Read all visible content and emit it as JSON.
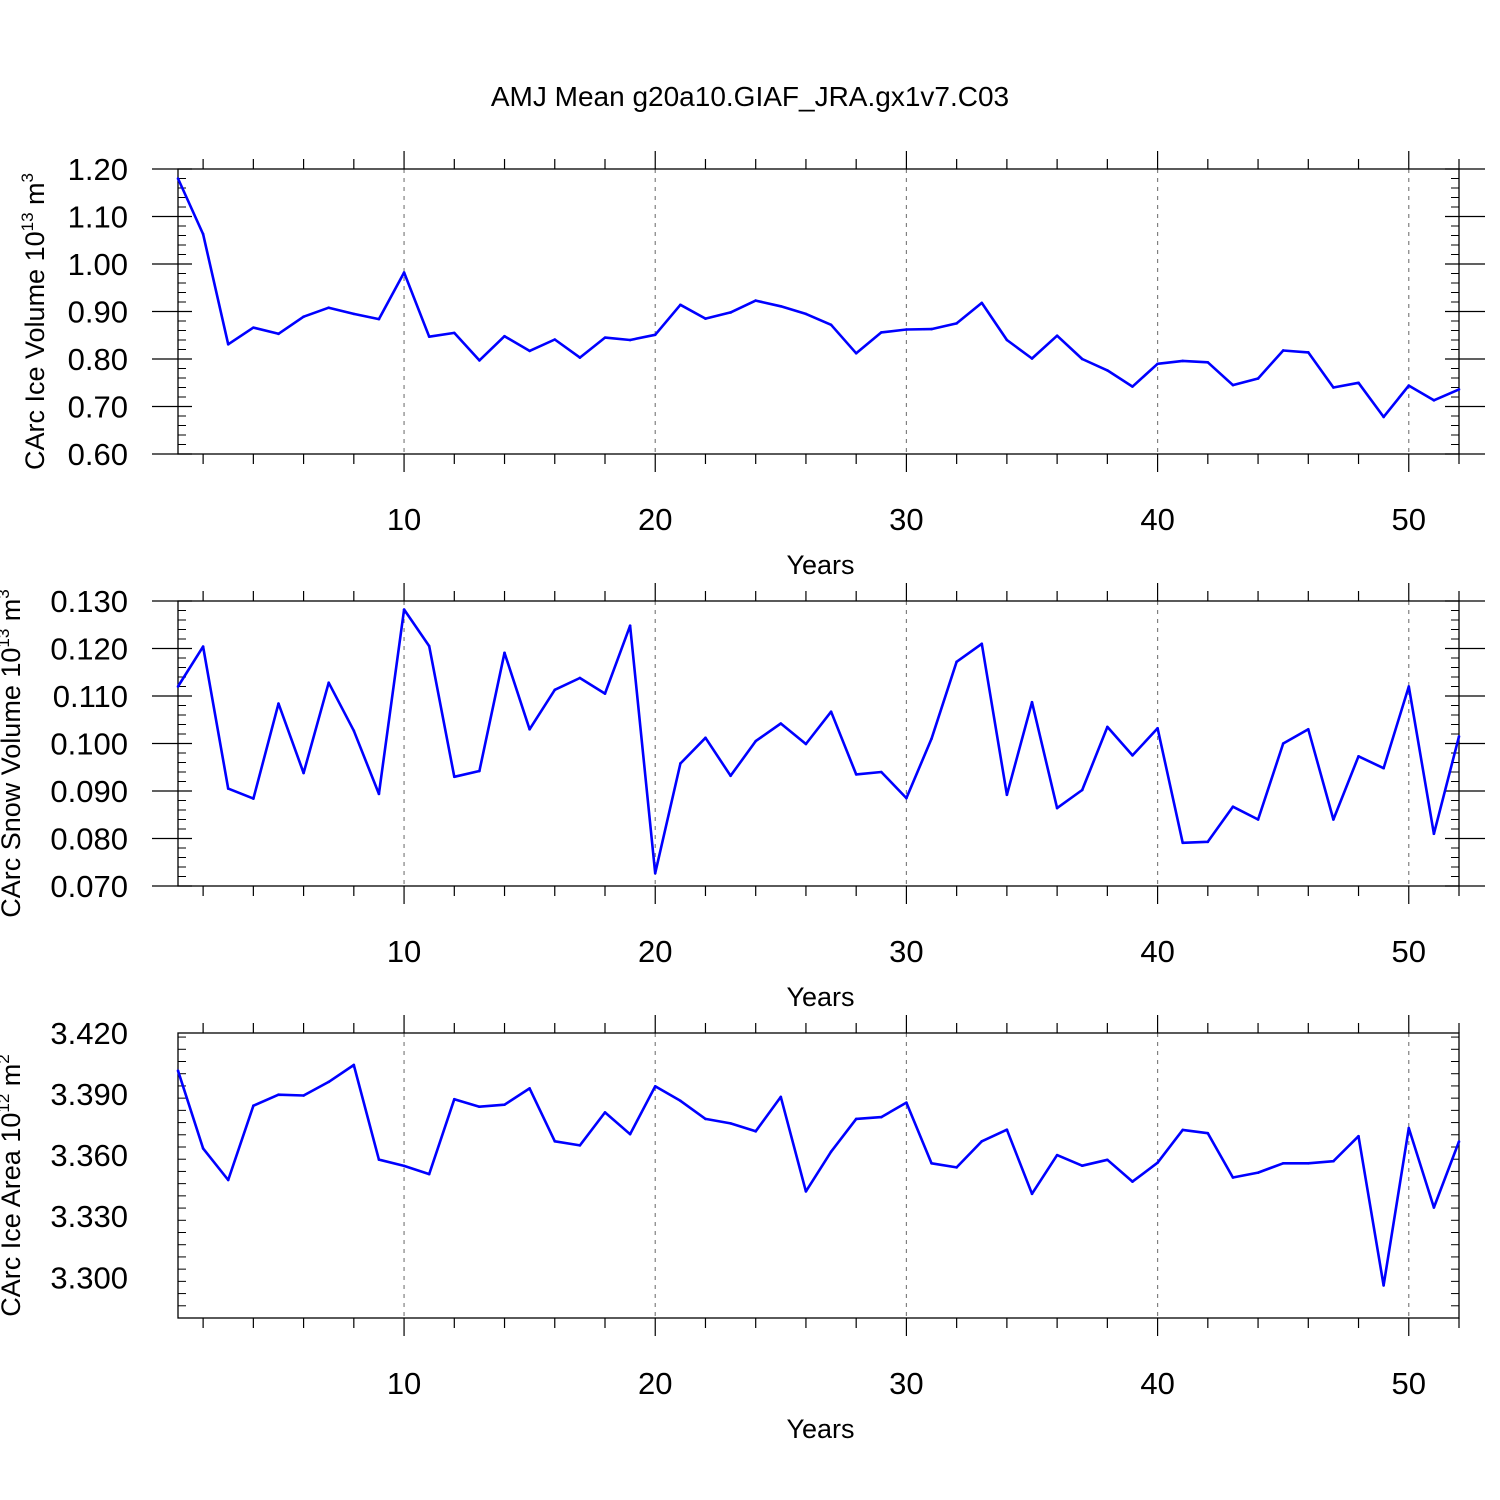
{
  "title": "AMJ Mean g20a10.GIAF_JRA.gx1v7.C03",
  "colors": {
    "line": "#0000ff",
    "axis": "#000000",
    "grid": "#808080"
  },
  "chart_data": [
    {
      "type": "line",
      "ylabel_main": "CArc Ice Volume 10",
      "ylabel_exp": "13",
      "ylabel_unit": " m",
      "ylabel_unit_exp": "3",
      "xlabel": "Years",
      "xlim": [
        1,
        52
      ],
      "ylim": [
        0.6,
        1.2
      ],
      "xticks": [
        "10",
        "20",
        "30",
        "40",
        "50"
      ],
      "yticks": [
        "0.60",
        "0.70",
        "0.80",
        "0.90",
        "1.00",
        "1.10",
        "1.20"
      ],
      "grid": "vertical dashed at major x ticks",
      "x": [
        1,
        2,
        3,
        4,
        5,
        6,
        7,
        8,
        9,
        10,
        11,
        12,
        13,
        14,
        15,
        16,
        17,
        18,
        19,
        20,
        21,
        22,
        23,
        24,
        25,
        26,
        27,
        28,
        29,
        30,
        31,
        32,
        33,
        34,
        35,
        36,
        37,
        38,
        39,
        40,
        41,
        42,
        43,
        44,
        45,
        46,
        47,
        48,
        49,
        50,
        51,
        52
      ],
      "values": [
        1.18,
        1.063,
        0.831,
        0.866,
        0.853,
        0.889,
        0.908,
        0.895,
        0.884,
        0.982,
        0.847,
        0.855,
        0.797,
        0.848,
        0.817,
        0.841,
        0.803,
        0.845,
        0.84,
        0.851,
        0.914,
        0.885,
        0.898,
        0.923,
        0.911,
        0.895,
        0.872,
        0.812,
        0.856,
        0.862,
        0.863,
        0.875,
        0.918,
        0.84,
        0.801,
        0.849,
        0.8,
        0.776,
        0.742,
        0.79,
        0.796,
        0.793,
        0.745,
        0.759,
        0.818,
        0.814,
        0.74,
        0.75,
        0.678,
        0.744,
        0.713,
        0.736
      ]
    },
    {
      "type": "line",
      "ylabel_main": "CArc Snow Volume 10",
      "ylabel_exp": "13",
      "ylabel_unit": " m",
      "ylabel_unit_exp": "3",
      "xlabel": "Years",
      "xlim": [
        1,
        52
      ],
      "ylim": [
        0.07,
        0.13
      ],
      "xticks": [
        "10",
        "20",
        "30",
        "40",
        "50"
      ],
      "yticks": [
        "0.070",
        "0.080",
        "0.090",
        "0.100",
        "0.110",
        "0.120",
        "0.130"
      ],
      "grid": "vertical dashed at major x ticks",
      "x": [
        1,
        2,
        3,
        4,
        5,
        6,
        7,
        8,
        9,
        10,
        11,
        12,
        13,
        14,
        15,
        16,
        17,
        18,
        19,
        20,
        21,
        22,
        23,
        24,
        25,
        26,
        27,
        28,
        29,
        30,
        31,
        32,
        33,
        34,
        35,
        36,
        37,
        38,
        39,
        40,
        41,
        42,
        43,
        44,
        45,
        46,
        47,
        48,
        49,
        50,
        51,
        52
      ],
      "values": [
        0.112,
        0.1204,
        0.0905,
        0.0884,
        0.1084,
        0.0938,
        0.1128,
        0.1027,
        0.0894,
        0.1282,
        0.1205,
        0.093,
        0.0942,
        0.1191,
        0.103,
        0.1113,
        0.1138,
        0.1105,
        0.1248,
        0.0727,
        0.0958,
        0.1012,
        0.0932,
        0.1005,
        0.1042,
        0.0999,
        0.1067,
        0.0935,
        0.094,
        0.0885,
        0.101,
        0.1172,
        0.121,
        0.0892,
        0.1087,
        0.0864,
        0.0902,
        0.1035,
        0.0975,
        0.1032,
        0.0791,
        0.0793,
        0.0867,
        0.084,
        0.1,
        0.103,
        0.084,
        0.0973,
        0.0948,
        0.112,
        0.081,
        0.1015
      ]
    },
    {
      "type": "line",
      "ylabel_main": "CArc Ice Area 10",
      "ylabel_exp": "12",
      "ylabel_unit": " m",
      "ylabel_unit_exp": "2",
      "xlabel": "Years",
      "xlim": [
        1,
        52
      ],
      "ylim": [
        3.28,
        3.42
      ],
      "xticks": [
        "10",
        "20",
        "30",
        "40",
        "50"
      ],
      "yticks": [
        "3.300",
        "3.330",
        "3.360",
        "3.390",
        "3.420"
      ],
      "grid": "vertical dashed at major x ticks",
      "x": [
        1,
        2,
        3,
        4,
        5,
        6,
        7,
        8,
        9,
        10,
        11,
        12,
        13,
        14,
        15,
        16,
        17,
        18,
        19,
        20,
        21,
        22,
        23,
        24,
        25,
        26,
        27,
        28,
        29,
        30,
        31,
        32,
        33,
        34,
        35,
        36,
        37,
        38,
        39,
        40,
        41,
        42,
        43,
        44,
        45,
        46,
        47,
        48,
        49,
        50,
        51,
        52
      ],
      "values": [
        3.4015,
        3.3633,
        3.3478,
        3.3843,
        3.3897,
        3.3893,
        3.396,
        3.4043,
        3.3578,
        3.3547,
        3.3507,
        3.3875,
        3.3838,
        3.3848,
        3.3928,
        3.3668,
        3.3648,
        3.381,
        3.3703,
        3.3938,
        3.3867,
        3.3778,
        3.3756,
        3.3717,
        3.3886,
        3.3422,
        3.3617,
        3.3778,
        3.3787,
        3.3858,
        3.356,
        3.354,
        3.3668,
        3.3725,
        3.341,
        3.36,
        3.3548,
        3.3577,
        3.347,
        3.3563,
        3.3724,
        3.3708,
        3.349,
        3.3514,
        3.356,
        3.356,
        3.357,
        3.3693,
        3.296,
        3.3733,
        3.3343,
        3.3667
      ]
    }
  ]
}
